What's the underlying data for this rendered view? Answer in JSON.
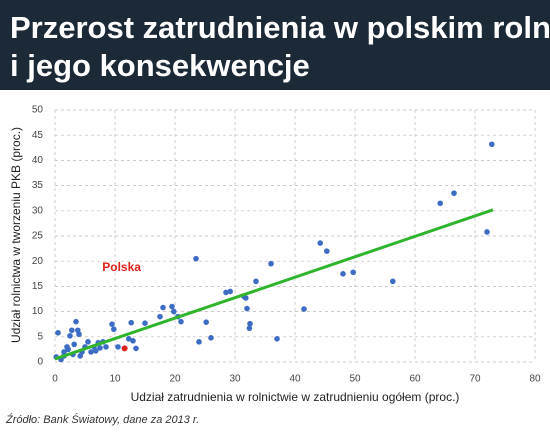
{
  "chart_data": {
    "type": "scatter",
    "title": "Przerost zatrudnienia w polskim rolnictwie i jego konsekwencje",
    "x_label": "Udział zatrudnienia w rolnictwie w zatrudnieniu ogółem (proc.)",
    "y_label": "Udział rolnictwa w tworzeniu PKB (proc.)",
    "source": "Źródło: Bank Światowy, dane za 2013 r.",
    "xlim": [
      0,
      80
    ],
    "xticks": [
      0,
      10,
      20,
      30,
      40,
      50,
      60,
      70,
      80
    ],
    "ylim": [
      0,
      50
    ],
    "yticks": [
      0,
      5,
      10,
      15,
      20,
      25,
      30,
      35,
      40,
      45,
      50
    ],
    "grid": true,
    "color": "#3d6cc4",
    "x": [
      72.8,
      66.5,
      64.2,
      72,
      44.2,
      45.3,
      36,
      48,
      49.7,
      56.3,
      23.5,
      33.5,
      28.5,
      29.2,
      31.5,
      31.8,
      32,
      32.5,
      32.4,
      37,
      41.5,
      26,
      25.2,
      24,
      21,
      20.5,
      19.8,
      19.5,
      18,
      17.5,
      15,
      12.7,
      13,
      13.5,
      12.3,
      9.5,
      9.8,
      8,
      7.5,
      6.5,
      6,
      5.5,
      5,
      4.5,
      4,
      3.5,
      3.8,
      3,
      2.5,
      2.8,
      2,
      1.5,
      1.5,
      1,
      0.5,
      0.2,
      2.2,
      3.2,
      4.2,
      6.8,
      7.2,
      8.5,
      10.5
    ],
    "y": [
      43.2,
      33.5,
      31.5,
      25.8,
      23.6,
      22,
      19.5,
      17.5,
      17.8,
      16,
      20.5,
      16,
      13.8,
      14,
      13,
      12.7,
      10.6,
      7.6,
      6.7,
      4.6,
      10.5,
      4.8,
      7.9,
      4,
      8,
      9,
      10,
      11,
      10.8,
      9,
      7.7,
      7.8,
      4.2,
      2.7,
      4.6,
      7.5,
      6.5,
      4,
      2.8,
      3,
      2,
      4,
      3,
      2,
      5.5,
      8,
      6.3,
      1.5,
      5.2,
      6.3,
      3,
      2,
      1.2,
      0.5,
      5.8,
      1,
      2.5,
      3.5,
      1.2,
      2.2,
      3.8,
      3,
      3
    ],
    "highlight": {
      "label": "Polska",
      "x": 11.6,
      "y": 2.7,
      "color": "#e0201b"
    },
    "trend_line": {
      "x": [
        0,
        73
      ],
      "y": [
        0.6,
        30.2
      ],
      "color": "#2fb52b"
    }
  }
}
